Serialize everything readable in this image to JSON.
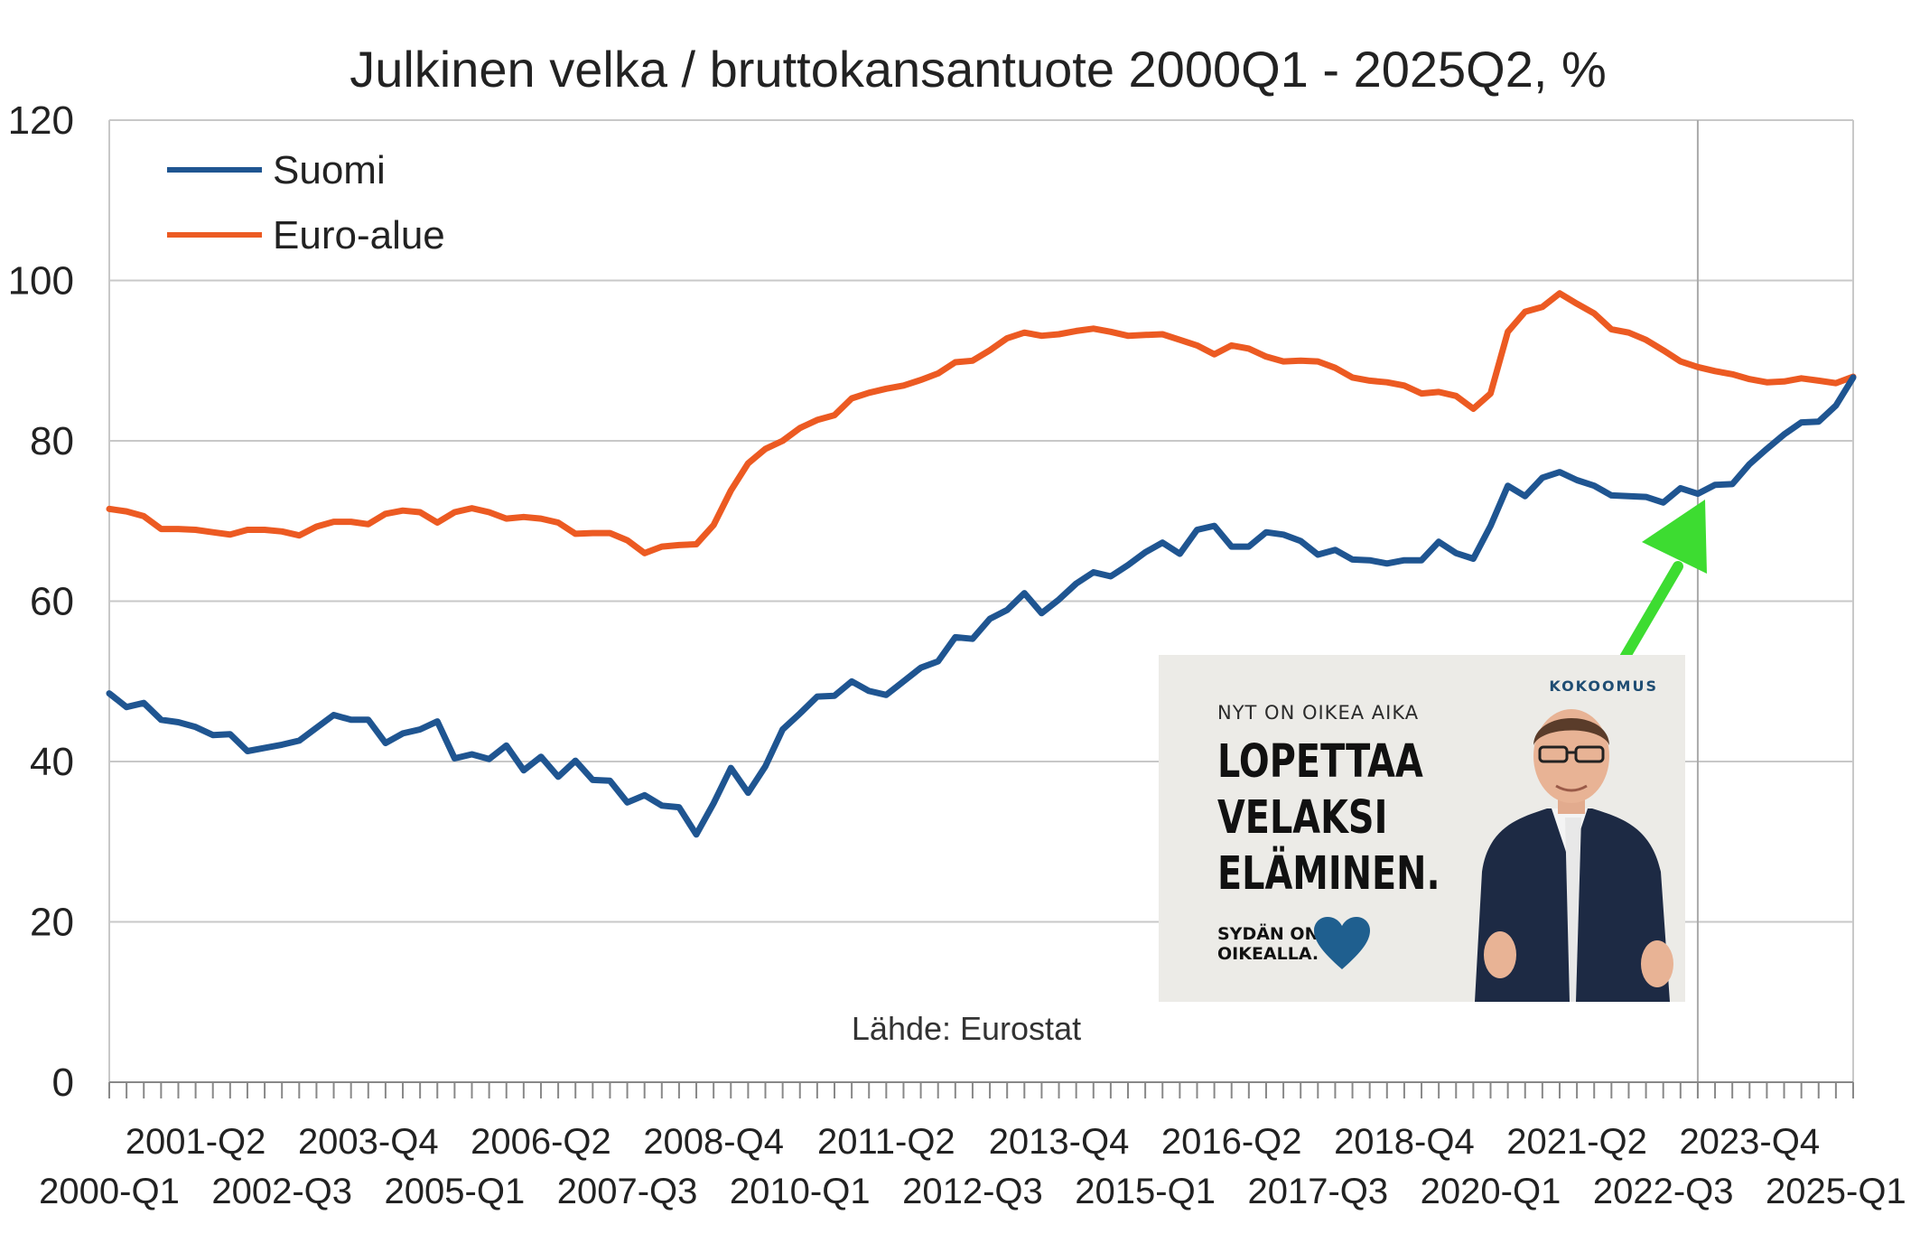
{
  "chart_data": {
    "type": "line",
    "title": "Julkinen velka / bruttokansantuote 2000Q1 - 2025Q2, %",
    "source": "Lähde: Eurostat",
    "ylim": [
      0,
      120
    ],
    "yticks": [
      "0",
      "20",
      "40",
      "60",
      "80",
      "100",
      "120"
    ],
    "grid": true,
    "legend_position": "top-left",
    "x_tick_labels_lower": [
      "2000-Q1",
      "2002-Q3",
      "2005-Q1",
      "2007-Q3",
      "2010-Q1",
      "2012-Q3",
      "2015-Q1",
      "2017-Q3",
      "2020-Q1",
      "2022-Q3",
      "2025-Q1"
    ],
    "x_tick_labels_upper": [
      "2001-Q2",
      "2003-Q4",
      "2006-Q2",
      "2008-Q4",
      "2011-Q2",
      "2013-Q4",
      "2016-Q2",
      "2018-Q4",
      "2021-Q2",
      "2023-Q4"
    ],
    "n_quarters": 102,
    "highlight_quarter": "2023-Q1",
    "series": [
      {
        "name": "Suomi",
        "color": "#1f5591",
        "values": [
          48.5,
          46.8,
          47.3,
          45.2,
          44.9,
          44.3,
          43.3,
          43.4,
          41.3,
          41.7,
          42.1,
          42.6,
          44.2,
          45.8,
          45.2,
          45.2,
          42.3,
          43.5,
          44.0,
          45.0,
          40.4,
          40.9,
          40.3,
          42.0,
          38.9,
          40.6,
          38.1,
          40.1,
          37.7,
          37.6,
          34.9,
          35.8,
          34.5,
          34.3,
          30.9,
          34.8,
          39.2,
          36.1,
          39.4,
          44.0,
          46.0,
          48.1,
          48.2,
          50.0,
          48.8,
          48.3,
          50.0,
          51.7,
          52.5,
          55.5,
          55.3,
          57.8,
          58.9,
          61.0,
          58.5,
          60.2,
          62.2,
          63.6,
          63.1,
          64.5,
          66.1,
          67.3,
          65.9,
          68.9,
          69.4,
          66.8,
          66.8,
          68.6,
          68.3,
          67.5,
          65.8,
          66.4,
          65.2,
          65.1,
          64.7,
          65.1,
          65.1,
          67.4,
          66.0,
          65.3,
          69.4,
          74.4,
          73.1,
          75.4,
          76.1,
          75.1,
          74.4,
          73.2,
          73.1,
          73.0,
          72.3,
          74.1,
          73.4,
          74.5,
          74.6,
          77.1,
          79.0,
          80.8,
          82.3,
          82.4,
          84.4,
          87.9
        ]
      },
      {
        "name": "Euro-alue",
        "color": "#ec5a22",
        "values": [
          71.5,
          71.2,
          70.6,
          69.0,
          69.0,
          68.9,
          68.6,
          68.3,
          68.9,
          68.9,
          68.7,
          68.2,
          69.3,
          69.9,
          69.9,
          69.6,
          70.9,
          71.3,
          71.1,
          69.8,
          71.1,
          71.6,
          71.1,
          70.3,
          70.5,
          70.3,
          69.8,
          68.4,
          68.5,
          68.5,
          67.6,
          66.0,
          66.8,
          67.0,
          67.1,
          69.5,
          73.8,
          77.2,
          79.0,
          80.0,
          81.6,
          82.6,
          83.2,
          85.3,
          86.0,
          86.5,
          86.9,
          87.6,
          88.4,
          89.8,
          90.0,
          91.3,
          92.8,
          93.5,
          93.1,
          93.3,
          93.7,
          94.0,
          93.6,
          93.1,
          93.2,
          93.3,
          92.6,
          91.9,
          90.8,
          91.9,
          91.5,
          90.5,
          89.9,
          90.0,
          89.9,
          89.1,
          87.9,
          87.5,
          87.3,
          86.9,
          85.9,
          86.1,
          85.6,
          84.0,
          85.9,
          93.6,
          96.1,
          96.7,
          98.4,
          97.1,
          95.9,
          93.9,
          93.5,
          92.6,
          91.3,
          89.9,
          89.2,
          88.7,
          88.3,
          87.7,
          87.3,
          87.4,
          87.8,
          87.5,
          87.2,
          88.0
        ]
      }
    ],
    "annotation": "green arrow pointing to Suomi 2023-Q1"
  },
  "ad": {
    "eyebrow": "NYT ON OIKEA AIKA",
    "headline_lines": [
      "LOPETTAA",
      "VELAKSI",
      "ELÄMINEN."
    ],
    "slogan_line1": "SYDÄN ON",
    "slogan_line2": "OIKEALLA.",
    "brand": "KOKOOMUS"
  }
}
